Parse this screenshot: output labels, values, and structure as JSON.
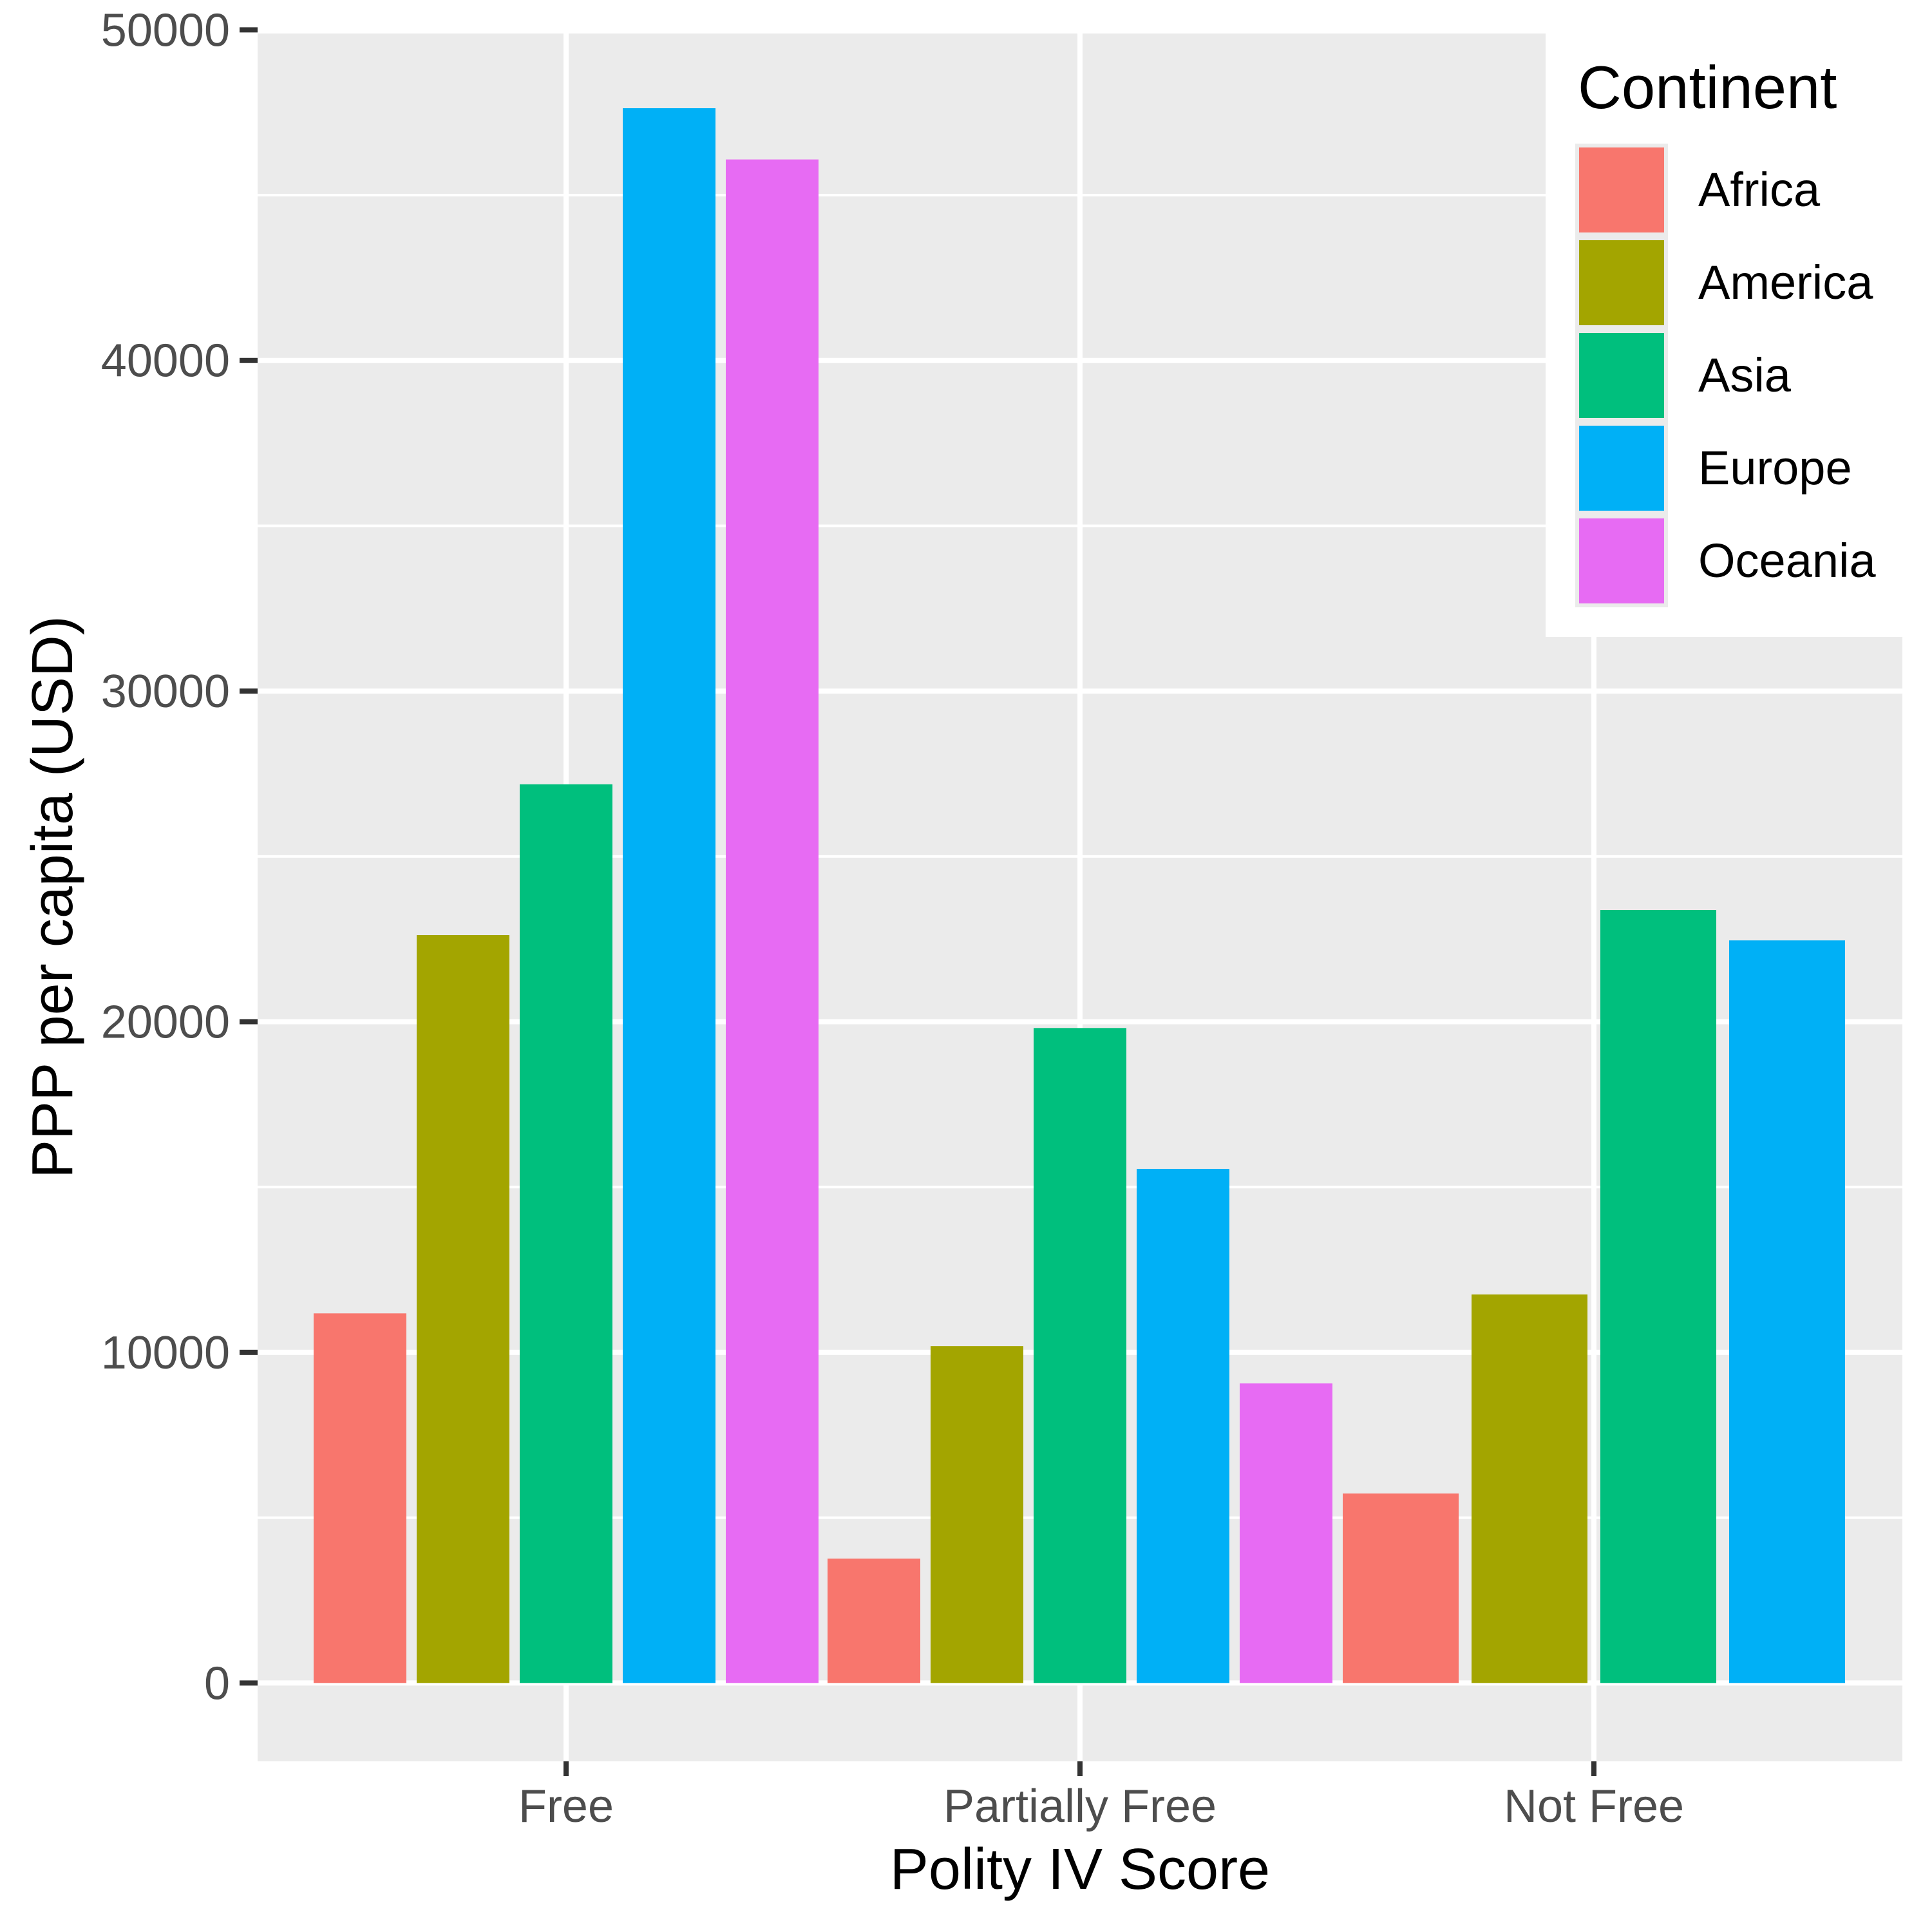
{
  "chart_data": {
    "type": "bar",
    "title": "",
    "xlabel": "Polity IV Score",
    "ylabel": "PPP per capita (USD)",
    "categories": [
      "Free",
      "Partially Free",
      "Not Free"
    ],
    "ylim": [
      -2370,
      49890
    ],
    "yticks": [
      0,
      10000,
      20000,
      30000,
      40000,
      50000
    ],
    "ytick_labels": [
      "0",
      "10000",
      "20000",
      "30000",
      "40000",
      "50000"
    ],
    "minor_yticks": [
      5000,
      15000,
      25000,
      35000,
      45000
    ],
    "grid": true,
    "legend": {
      "title": "Continent",
      "placement": "top-right",
      "entries": [
        "Africa",
        "America",
        "Asia",
        "Europe",
        "Oceania"
      ]
    },
    "series": [
      {
        "name": "Africa",
        "color": "#F8766D",
        "values": [
          11180,
          3760,
          5730
        ]
      },
      {
        "name": "America",
        "color": "#A3A500",
        "values": [
          22620,
          10190,
          11750
        ]
      },
      {
        "name": "Asia",
        "color": "#00BF7D",
        "values": [
          27180,
          19810,
          23380
        ]
      },
      {
        "name": "Europe",
        "color": "#00B0F6",
        "values": [
          47630,
          15550,
          22460
        ]
      },
      {
        "name": "Oceania",
        "color": "#E76BF3",
        "values": [
          46080,
          9060,
          null
        ]
      }
    ]
  },
  "colors": {
    "panel_background": "#EBEBEB",
    "grid": "#FFFFFF",
    "tick_text": "#4D4D4D",
    "tick_mark": "#333333"
  }
}
